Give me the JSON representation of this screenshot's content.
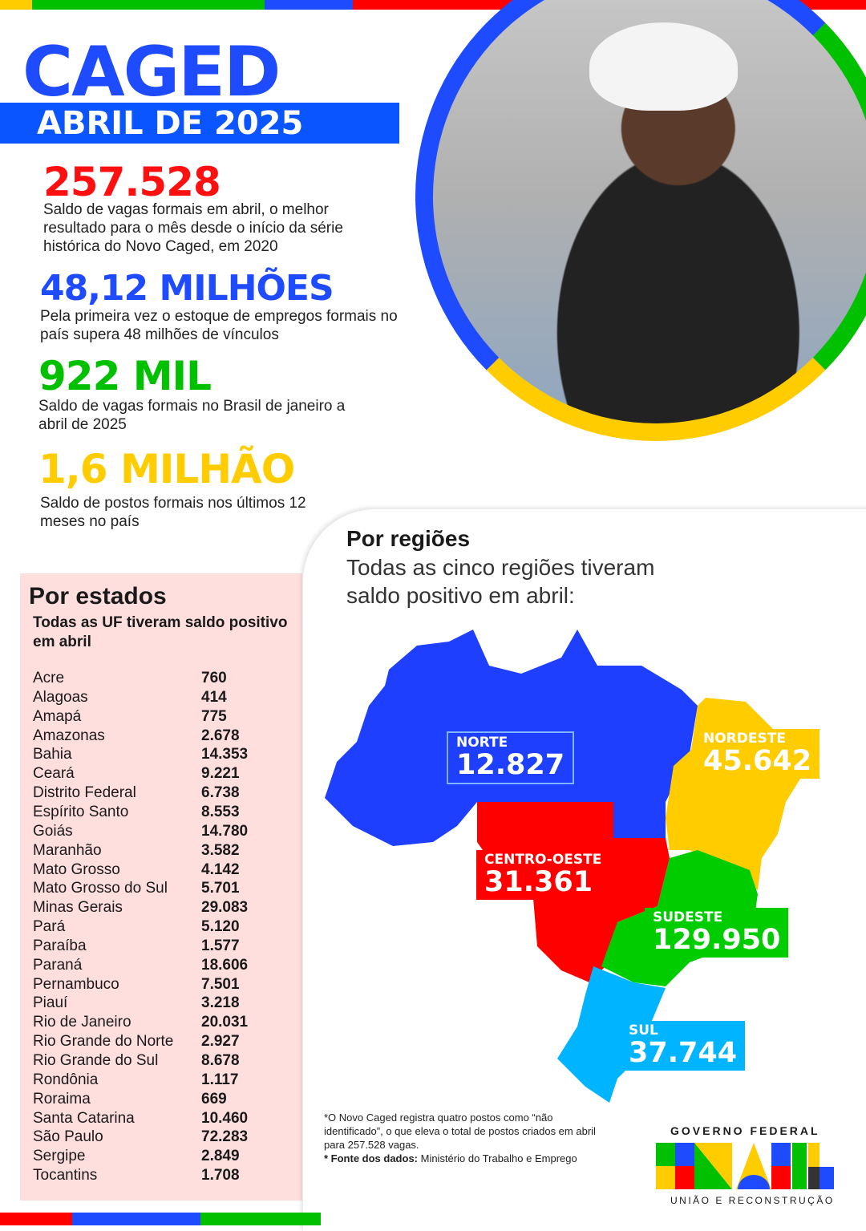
{
  "header": {
    "title": "CAGED",
    "subtitle": "ABRIL DE 2025"
  },
  "highlights": [
    {
      "value": "257.528",
      "text": "Saldo de vagas formais em abril, o melhor resultado para o mês desde o início da série histórica do Novo Caged, em 2020",
      "color": "#ff1010"
    },
    {
      "value": "48,12 MILHÕES",
      "text": "Pela primeira vez o estoque de empregos formais no país supera 48 milhões de vínculos",
      "color": "#1f4bff"
    },
    {
      "value": "922 MIL",
      "text": "Saldo de vagas formais no Brasil de janeiro a abril de 2025",
      "color": "#00c000"
    },
    {
      "value": "1,6 MILHÃO",
      "text": "Saldo de postos formais nos últimos 12 meses no país",
      "color": "#ffcc00"
    }
  ],
  "states": {
    "title": "Por estados",
    "subtitle": "Todas as UF tiveram saldo positivo em abril",
    "rows": [
      [
        "Acre",
        "760"
      ],
      [
        "Alagoas",
        "414"
      ],
      [
        "Amapá",
        "775"
      ],
      [
        "Amazonas",
        "2.678"
      ],
      [
        "Bahia",
        "14.353"
      ],
      [
        "Ceará",
        "9.221"
      ],
      [
        "Distrito Federal",
        "6.738"
      ],
      [
        "Espírito Santo",
        "8.553"
      ],
      [
        "Goiás",
        "14.780"
      ],
      [
        "Maranhão",
        "3.582"
      ],
      [
        "Mato Grosso",
        "4.142"
      ],
      [
        "Mato Grosso do Sul",
        "5.701"
      ],
      [
        "Minas Gerais",
        "29.083"
      ],
      [
        "Pará",
        "5.120"
      ],
      [
        "Paraíba",
        "1.577"
      ],
      [
        "Paraná",
        "18.606"
      ],
      [
        "Pernambuco",
        "7.501"
      ],
      [
        "Piauí",
        "3.218"
      ],
      [
        "Rio de Janeiro",
        "20.031"
      ],
      [
        "Rio Grande do Norte",
        "2.927"
      ],
      [
        "Rio Grande do Sul",
        "8.678"
      ],
      [
        "Rondônia",
        "1.117"
      ],
      [
        "Roraima",
        "669"
      ],
      [
        "Santa Catarina",
        "10.460"
      ],
      [
        "São Paulo",
        "72.283"
      ],
      [
        "Sergipe",
        "2.849"
      ],
      [
        "Tocantins",
        "1.708"
      ]
    ]
  },
  "regions": {
    "title": "Por regiões",
    "subtitle": "Todas as cinco regiões tiveram saldo positivo em abril:",
    "items": [
      {
        "name": "NORTE",
        "value": "12.827",
        "color": "#1f3fff"
      },
      {
        "name": "NORDESTE",
        "value": "45.642",
        "color": "#ffcc00"
      },
      {
        "name": "CENTRO-OESTE",
        "value": "31.361",
        "color": "#ff0000"
      },
      {
        "name": "SUDESTE",
        "value": "129.950",
        "color": "#00cc00"
      },
      {
        "name": "SUL",
        "value": "37.744",
        "color": "#00b4ff"
      }
    ]
  },
  "footnote": {
    "note": "*O Novo Caged registra quatro postos como “não identificado”, o que eleva o total de postos criados em abril para 257.528  vagas.",
    "source_label": "* Fonte dos dados:",
    "source": " Ministério do Trabalho e Emprego"
  },
  "logo": {
    "top": "GOVERNO FEDERAL",
    "word": "BRASIL",
    "bottom": "UNIÃO E RECONSTRUÇÃO"
  }
}
